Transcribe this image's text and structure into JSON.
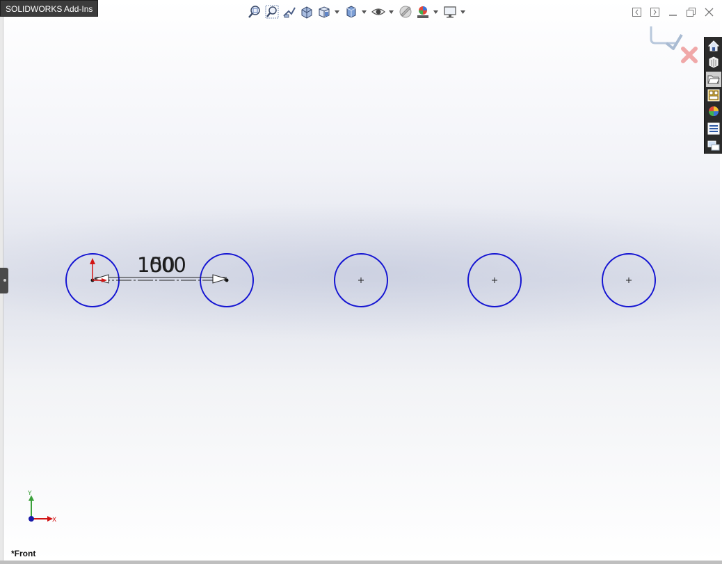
{
  "addins_tab": {
    "label": "SOLIDWORKS Add-Ins"
  },
  "hud_toolbar": {
    "items": [
      {
        "name": "zoom-to-fit-icon"
      },
      {
        "name": "zoom-to-area-icon"
      },
      {
        "name": "previous-view-icon"
      },
      {
        "name": "section-view-icon"
      },
      {
        "name": "view-orientation-icon",
        "dropdown": true
      },
      {
        "name": "display-style-icon",
        "dropdown": true
      },
      {
        "name": "hide-show-items-icon",
        "dropdown": true
      },
      {
        "name": "edit-appearance-icon"
      },
      {
        "name": "apply-scene-icon",
        "dropdown": true
      },
      {
        "name": "view-settings-icon",
        "dropdown": true
      }
    ]
  },
  "window_controls": [
    "tile-left-icon",
    "tile-right-icon",
    "minimize-icon",
    "restore-icon",
    "close-icon"
  ],
  "confirmation_corner": {
    "exit_sketch": "exit-sketch-icon",
    "cancel": "cancel-sketch-icon"
  },
  "task_pane": {
    "items": [
      {
        "name": "solidworks-resources-icon"
      },
      {
        "name": "design-library-icon"
      },
      {
        "name": "file-explorer-icon",
        "active": true
      },
      {
        "name": "view-palette-icon"
      },
      {
        "name": "appearances-scenes-icon"
      },
      {
        "name": "custom-properties-icon"
      },
      {
        "name": "solidworks-forum-icon"
      }
    ]
  },
  "sketch": {
    "circle_color": "#1414d2",
    "dimension": {
      "value": "1000",
      "overlay": "50"
    },
    "circles_count": 5
  },
  "triad": {
    "x_label": "X",
    "y_label": "Y"
  },
  "view": {
    "label": "*Front"
  }
}
